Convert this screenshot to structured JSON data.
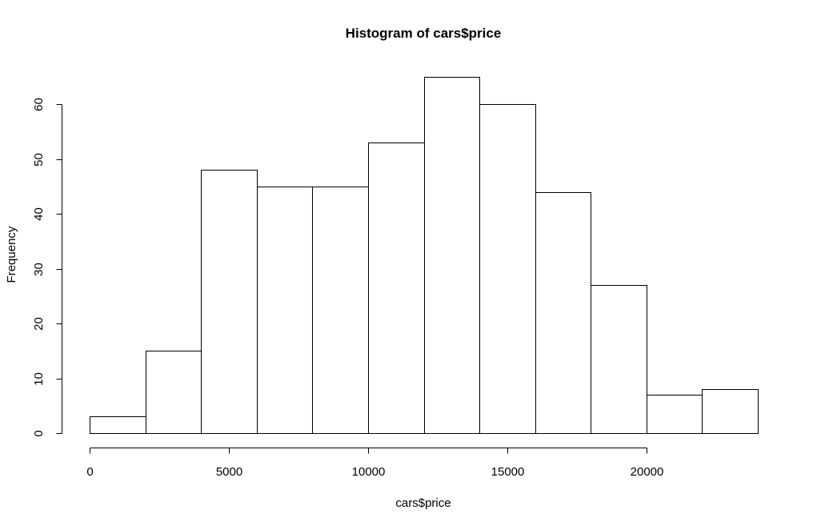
{
  "chart_data": {
    "type": "bar",
    "title": "Histogram of cars$price",
    "xlabel": "cars$price",
    "ylabel": "Frequency",
    "bins": [
      {
        "start": 0,
        "end": 2000,
        "count": 3
      },
      {
        "start": 2000,
        "end": 4000,
        "count": 15
      },
      {
        "start": 4000,
        "end": 6000,
        "count": 48
      },
      {
        "start": 6000,
        "end": 8000,
        "count": 45
      },
      {
        "start": 8000,
        "end": 10000,
        "count": 45
      },
      {
        "start": 10000,
        "end": 12000,
        "count": 53
      },
      {
        "start": 12000,
        "end": 14000,
        "count": 65
      },
      {
        "start": 14000,
        "end": 16000,
        "count": 60
      },
      {
        "start": 16000,
        "end": 18000,
        "count": 44
      },
      {
        "start": 18000,
        "end": 20000,
        "count": 27
      },
      {
        "start": 20000,
        "end": 22000,
        "count": 7
      },
      {
        "start": 22000,
        "end": 24000,
        "count": 8
      }
    ],
    "xlim": [
      0,
      24000
    ],
    "ylim": [
      0,
      65
    ],
    "x_ticks": [
      0,
      5000,
      10000,
      15000,
      20000
    ],
    "x_tick_labels": [
      "0",
      "5000",
      "10000",
      "15000",
      "20000"
    ],
    "y_ticks": [
      0,
      10,
      20,
      30,
      40,
      50,
      60
    ],
    "y_tick_labels": [
      "0",
      "10",
      "20",
      "30",
      "40",
      "50",
      "60"
    ],
    "grid": false,
    "legend": "none",
    "colors": {
      "bar_fill": "#ffffff",
      "bar_stroke": "#000000",
      "text": "#000000"
    }
  }
}
